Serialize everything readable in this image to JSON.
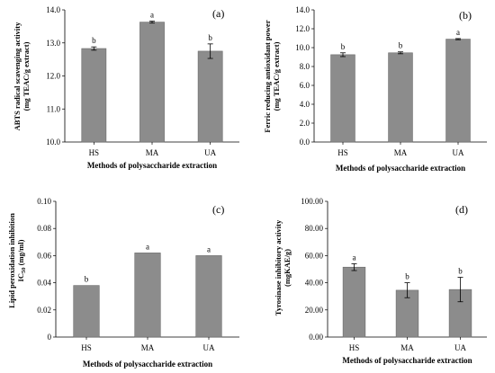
{
  "chart_data": [
    {
      "type": "bar",
      "panel_label": "(a)",
      "categories": [
        "HS",
        "MA",
        "UA"
      ],
      "values": [
        12.83,
        13.63,
        12.75
      ],
      "errors": [
        0.05,
        0.03,
        0.22
      ],
      "letters": [
        "b",
        "a",
        "b"
      ],
      "xlabel": "Methods of polysaccharide extraction",
      "ylabel_lines": [
        "ABTS radical scavenging activity",
        "(mg TEAC/g extract)"
      ],
      "ylim": [
        10.0,
        14.0
      ],
      "yticks": [
        10.0,
        11.0,
        12.0,
        13.0,
        14.0
      ],
      "ytick_labels": [
        "10.0",
        "11.0",
        "12.0",
        "13.0",
        "14.0"
      ],
      "bar_color": "#8c8c8c",
      "grid": false
    },
    {
      "type": "bar",
      "panel_label": "(b)",
      "categories": [
        "HS",
        "MA",
        "UA"
      ],
      "values": [
        9.25,
        9.45,
        10.9
      ],
      "errors": [
        0.2,
        0.1,
        0.06
      ],
      "letters": [
        "b",
        "b",
        "a"
      ],
      "xlabel": "Methods of polysaccharide extraction",
      "ylabel_lines": [
        "Ferric reducing antioxidant power",
        "(mg TEAC/g extract)"
      ],
      "ylim": [
        0.0,
        14.0
      ],
      "yticks": [
        0,
        2,
        4,
        6,
        8,
        10,
        12,
        14
      ],
      "ytick_labels": [
        "0.0",
        "2.0",
        "4.0",
        "6.0",
        "8.0",
        "10.0",
        "12.0",
        "14.0"
      ],
      "bar_color": "#8c8c8c",
      "grid": false
    },
    {
      "type": "bar",
      "panel_label": "(c)",
      "categories": [
        "HS",
        "MA",
        "UA"
      ],
      "values": [
        0.038,
        0.062,
        0.06
      ],
      "errors": [
        0,
        0,
        0
      ],
      "letters": [
        "b",
        "a",
        "a"
      ],
      "xlabel": "Methods of polysaccharide extraction",
      "ylabel_lines": [
        "Lipid peroxidation inhibition",
        "IC50 (mg/ml)"
      ],
      "ylim": [
        0.0,
        0.1
      ],
      "yticks": [
        0,
        0.02,
        0.04,
        0.06,
        0.08,
        0.1
      ],
      "ytick_labels": [
        "0",
        "0.02",
        "0.04",
        "0.06",
        "0.08",
        "0.10"
      ],
      "bar_color": "#8c8c8c",
      "grid": false
    },
    {
      "type": "bar",
      "panel_label": "(d)",
      "categories": [
        "HS",
        "MA",
        "UA"
      ],
      "values": [
        51.5,
        34.5,
        35.0
      ],
      "errors": [
        2.5,
        5.5,
        9.0
      ],
      "letters": [
        "a",
        "b",
        "b"
      ],
      "xlabel": "Methods of polysaccharide extraction",
      "ylabel_lines": [
        "Tyrosinase inhibitory activity",
        "(mgKAE/g)"
      ],
      "ylim": [
        0.0,
        100.0
      ],
      "yticks": [
        0,
        20,
        40,
        60,
        80,
        100
      ],
      "ytick_labels": [
        "0.00",
        "20.00",
        "40.00",
        "60.00",
        "80.00",
        "100.00"
      ],
      "bar_color": "#8c8c8c",
      "grid": false
    }
  ]
}
